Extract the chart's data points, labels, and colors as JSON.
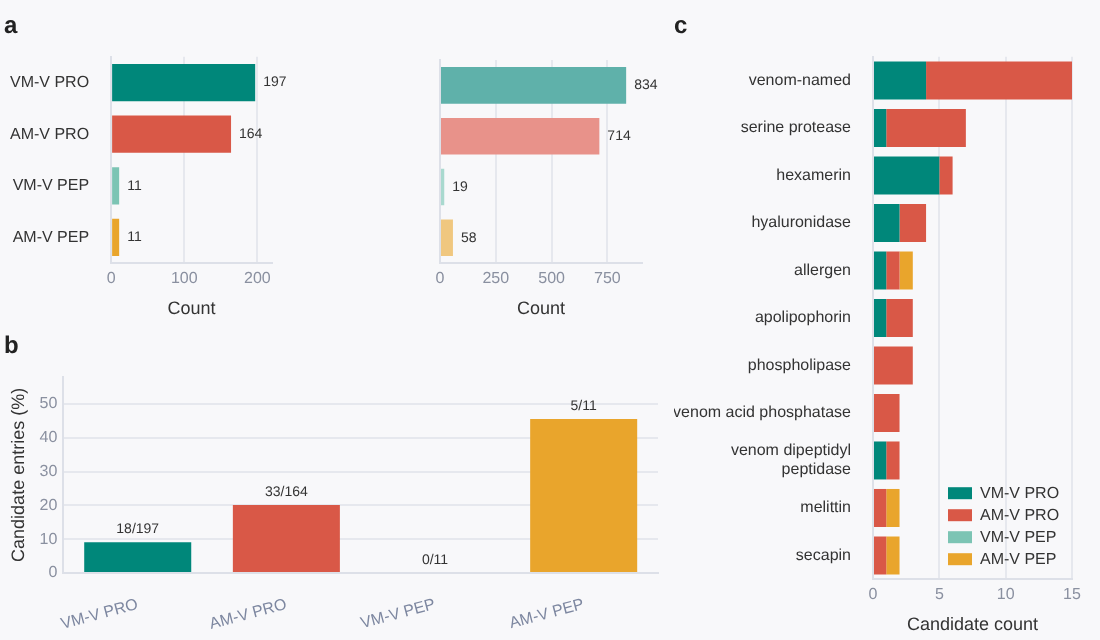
{
  "chart_data": [
    {
      "type": "bar",
      "title": "a",
      "orientation": "horizontal",
      "categories": [
        "VM-V PRO",
        "AM-V PRO",
        "VM-V PEP",
        "AM-V PEP"
      ],
      "values": [
        197,
        164,
        11,
        11
      ],
      "colors": [
        "#00877a",
        "#d95847",
        "#7cc4b4",
        "#e9a52c"
      ],
      "xlim": [
        0,
        220
      ],
      "xticks": [
        0,
        100,
        200
      ],
      "xlabel": "Count",
      "data_labels": true,
      "grid": "x"
    },
    {
      "type": "bar",
      "orientation": "horizontal",
      "categories": [
        null,
        null,
        null,
        null
      ],
      "values": [
        834,
        714,
        19,
        58
      ],
      "colors": [
        "#5fb1aa",
        "#e8928a",
        "#a9d9cf",
        "#f0c77f"
      ],
      "xlim": [
        0,
        905
      ],
      "xticks": [
        0,
        250,
        500,
        750
      ],
      "xlabel": "Count",
      "data_labels": true,
      "grid": "x",
      "tick_labels": "x"
    },
    {
      "type": "bar",
      "title": "b",
      "categories": [
        "VM-V PRO",
        "AM-V PRO",
        "VM-V PEP",
        "AM-V PEP"
      ],
      "values": [
        9.1,
        20.1,
        0,
        45.5
      ],
      "colors": [
        "#00877a",
        "#d95847",
        "#7cc4b4",
        "#e9a52c"
      ],
      "value_labels": [
        "18/197",
        "33/164",
        "0/11",
        "5/11"
      ],
      "ylim": [
        0,
        58
      ],
      "yticks": [
        0,
        10,
        20,
        30,
        40,
        50
      ],
      "ylabel": "Candidate entries (%)",
      "grid": "y"
    },
    {
      "type": "bar",
      "title": "c",
      "orientation": "horizontal",
      "stacked": true,
      "categories": [
        "venom-named",
        "serine protease",
        "hexamerin",
        "hyaluronidase",
        "allergen",
        "apolipophorin",
        "phospholipase",
        "venom acid phosphatase",
        "venom dipeptidyl peptidase",
        "melittin",
        "secapin"
      ],
      "series": [
        {
          "name": "VM-V PRO",
          "color": "#00877a",
          "values": [
            4,
            1,
            5,
            2,
            1,
            1,
            0,
            0,
            1,
            0,
            0
          ]
        },
        {
          "name": "AM-V PRO",
          "color": "#d95847",
          "values": [
            11,
            6,
            1,
            2,
            1,
            2,
            3,
            2,
            1,
            1,
            1
          ]
        },
        {
          "name": "VM-V PEP",
          "color": "#7cc4b4",
          "values": [
            0,
            0,
            0,
            0,
            0,
            0,
            0,
            0,
            0,
            0,
            0
          ]
        },
        {
          "name": "AM-V PEP",
          "color": "#e9a52c",
          "values": [
            0,
            0,
            0,
            0,
            1,
            0,
            0,
            0,
            0,
            1,
            1
          ]
        }
      ],
      "xlim": [
        0,
        15
      ],
      "xticks": [
        0,
        5,
        10,
        15
      ],
      "xlabel": "Candidate count",
      "legend": "bottom right",
      "grid": "x"
    }
  ]
}
